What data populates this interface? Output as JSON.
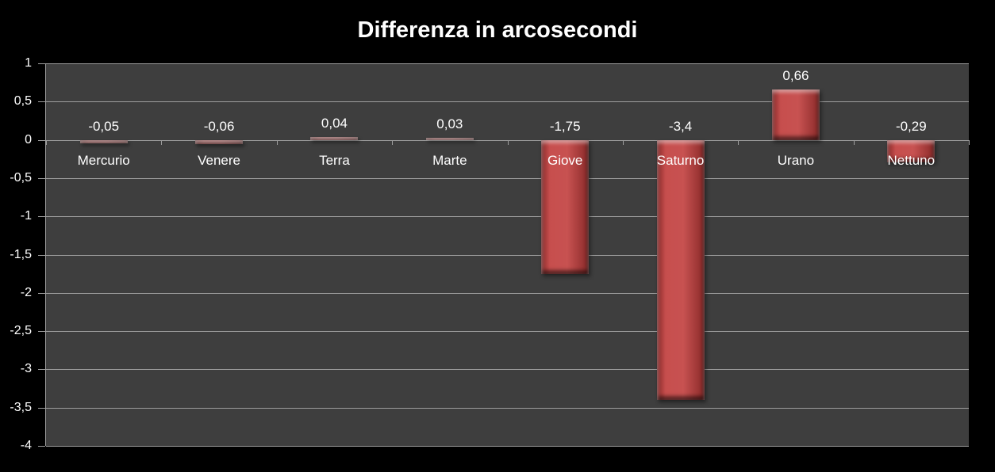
{
  "chart_data": {
    "type": "bar",
    "title": "Differenza in arcosecondi",
    "categories": [
      "Mercurio",
      "Venere",
      "Terra",
      "Marte",
      "Giove",
      "Saturno",
      "Urano",
      "Nettuno"
    ],
    "values": [
      -0.05,
      -0.06,
      0.04,
      0.03,
      -1.75,
      -3.4,
      0.66,
      -0.29
    ],
    "value_labels": [
      "-0,05",
      "-0,06",
      "0,04",
      "0,03",
      "-1,75",
      "-3,4",
      "0,66",
      "-0,29"
    ],
    "xlabel": "",
    "ylabel": "",
    "ylim": [
      -4,
      1
    ],
    "ytick_step": 0.5,
    "ytick_labels": [
      "1",
      "0,5",
      "0",
      "-0,5",
      "-1",
      "-1,5",
      "-2",
      "-2,5",
      "-3",
      "-3,5",
      "-4"
    ],
    "grid": true,
    "legend": false,
    "colors": {
      "background": "#000000",
      "plot_background": "#3e3e3e",
      "gridline": "#9e9e9e",
      "bar": "#c03a39",
      "bar_highlight": "#e0817a",
      "bar_shadow": "#7c2425",
      "text": "#ffffff"
    }
  }
}
